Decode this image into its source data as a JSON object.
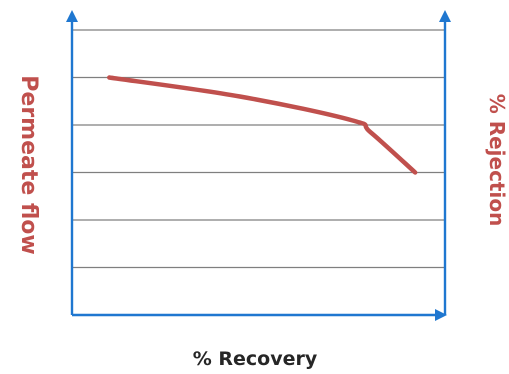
{
  "chart_data": {
    "type": "line",
    "xlabel": "% Recovery",
    "ylabel": "Permeate flow",
    "ylabel_right": "% Rejection",
    "xlim": [
      0,
      100
    ],
    "ylim": [
      0,
      6
    ],
    "grid": "horizontal",
    "series": [
      {
        "color": "#c0504d",
        "x": [
          10,
          45,
          75,
          80,
          92
        ],
        "y": [
          5.0,
          4.6,
          4.1,
          3.85,
          3.0
        ]
      }
    ],
    "colors": {
      "axis": "#1f77d0",
      "grid": "#7f7f7f",
      "axis_label": "#c0504d",
      "x_label": "#262626"
    }
  }
}
